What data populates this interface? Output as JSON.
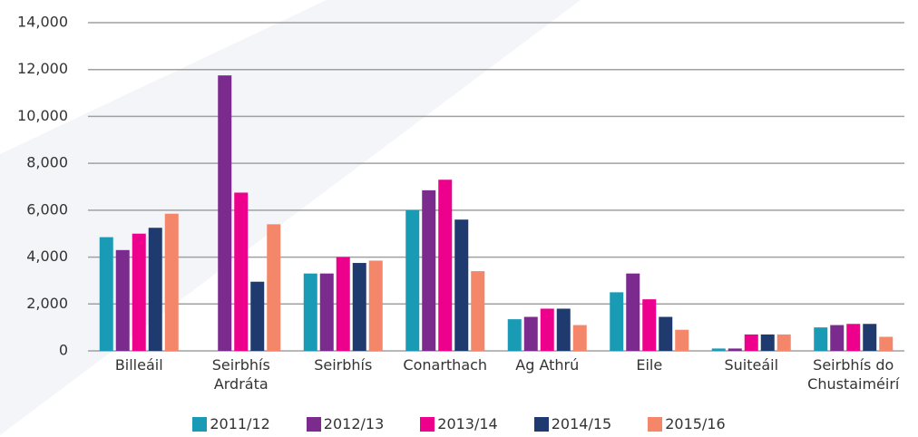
{
  "chart_data": {
    "type": "bar",
    "categories": [
      "Billeáil",
      "Seirbhís Ardráta",
      "Seirbhís",
      "Conarthach",
      "Ag Athrú",
      "Eile",
      "Suiteáil",
      "Seirbhís do Chustaiméirí"
    ],
    "series": [
      {
        "name": "2011/12",
        "color": "#1a9bb5",
        "values": [
          4850,
          null,
          3300,
          6000,
          1350,
          2500,
          100,
          1000
        ]
      },
      {
        "name": "2012/13",
        "color": "#7b2a8e",
        "values": [
          4300,
          11750,
          3300,
          6850,
          1450,
          3300,
          100,
          1100
        ]
      },
      {
        "name": "2013/14",
        "color": "#ec008c",
        "values": [
          5000,
          6750,
          4000,
          7300,
          1800,
          2200,
          700,
          1150
        ]
      },
      {
        "name": "2014/15",
        "color": "#1f3a6e",
        "values": [
          5250,
          2950,
          3750,
          5600,
          1800,
          1450,
          700,
          1150
        ]
      },
      {
        "name": "2015/16",
        "color": "#f4866a",
        "values": [
          5850,
          5400,
          3850,
          3400,
          1100,
          900,
          700,
          600
        ]
      }
    ],
    "ylim": [
      0,
      14000
    ],
    "yticks": [
      0,
      {
        "value": 2000,
        "label": "2,000"
      },
      {
        "value": 4000,
        "label": "4,000"
      },
      {
        "value": 6000,
        "label": "6,000"
      },
      {
        "value": 8000,
        "label": "8,000"
      },
      {
        "value": 10000,
        "label": "10,000"
      },
      {
        "value": 12000,
        "label": "12,000"
      },
      {
        "value": 14000,
        "label": "14,000"
      }
    ],
    "grid": true
  }
}
